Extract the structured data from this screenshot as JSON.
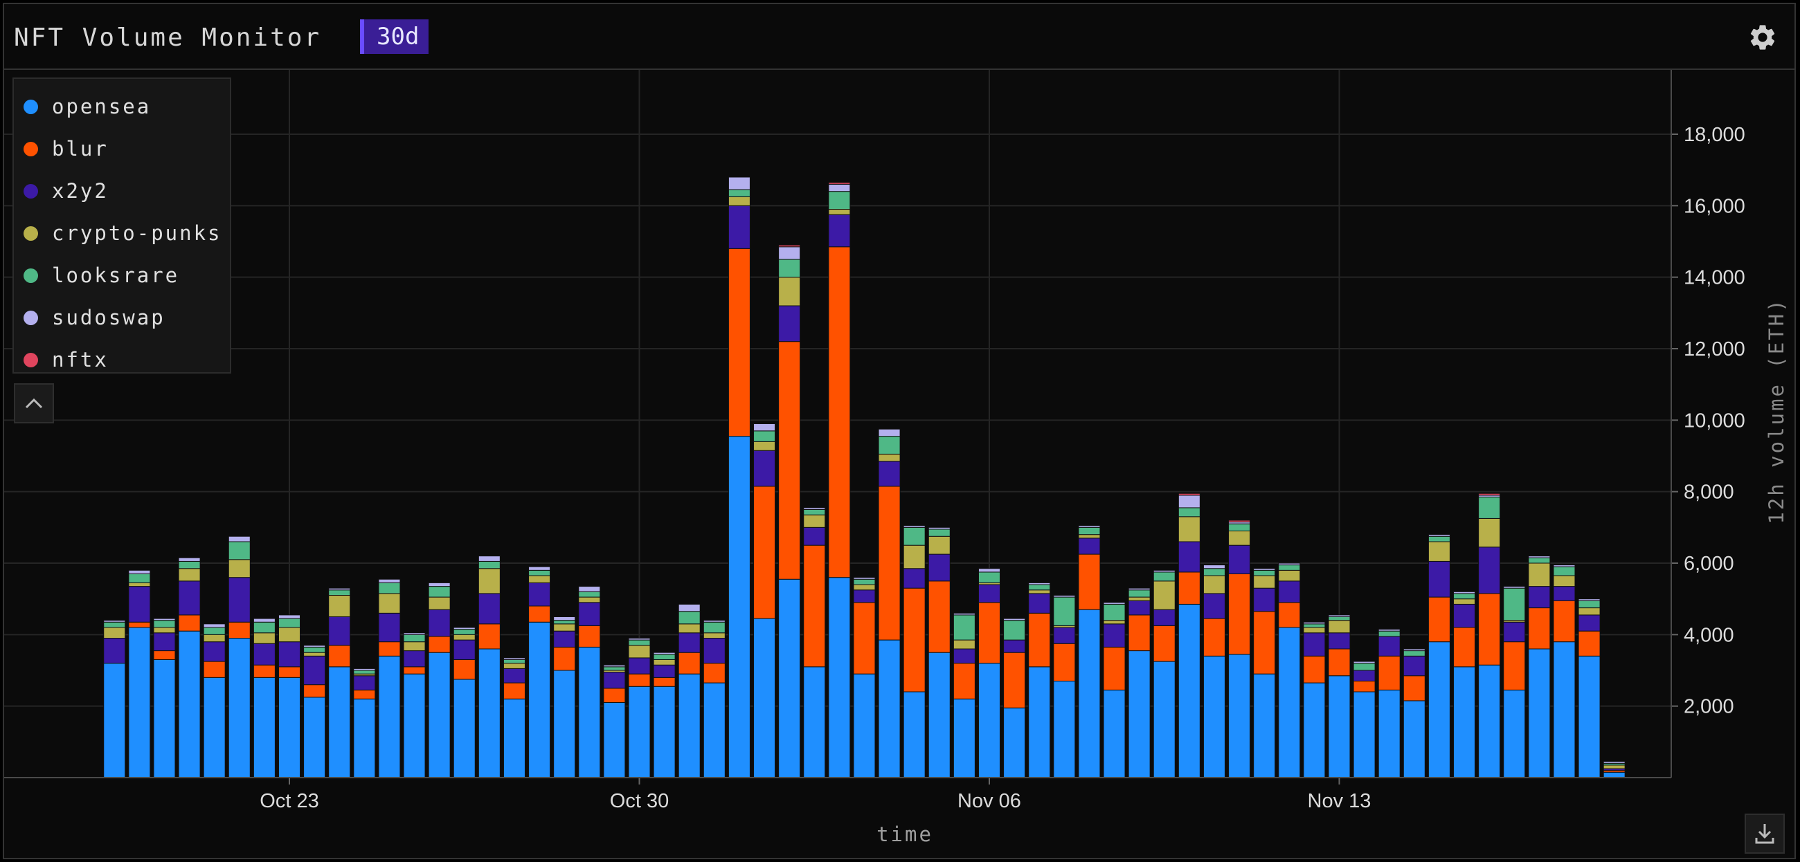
{
  "header": {
    "title": "NFT Volume Monitor",
    "range_label": "30d"
  },
  "icons": {
    "settings": "gear-icon",
    "collapse": "chevron-up-icon",
    "download": "download-icon"
  },
  "colors": {
    "opensea": "#1f8fff",
    "blur": "#ff5200",
    "x2y2": "#3c1aa6",
    "crypto-punks": "#b8b04a",
    "looksrare": "#4fb886",
    "sudoswap": "#b4b0ee",
    "nftx": "#e0455e",
    "accent": "#3a1e96"
  },
  "chart_data": {
    "type": "bar",
    "stacked": true,
    "title": "",
    "xlabel": "time",
    "ylabel": "12h volume (ETH)",
    "ylim": [
      0,
      19800
    ],
    "yticks": [
      2000,
      4000,
      6000,
      8000,
      10000,
      12000,
      14000,
      16000,
      18000
    ],
    "ytick_labels": [
      "2,000",
      "4,000",
      "6,000",
      "8,000",
      "10,000",
      "12,000",
      "14,000",
      "16,000",
      "18,000"
    ],
    "xtick_labels": [
      "Oct 23",
      "Oct 30",
      "Nov 06",
      "Nov 13"
    ],
    "x_start": "2023-10-19T12:00",
    "x_step_hours": 12,
    "grid": true,
    "legend_position": "top-left",
    "series": [
      {
        "name": "opensea",
        "values": [
          3200,
          4200,
          3300,
          4100,
          2800,
          3900,
          2800,
          2800,
          2250,
          3100,
          2200,
          3400,
          2900,
          3500,
          2750,
          3600,
          2200,
          4350,
          3000,
          3650,
          2100,
          2550,
          2550,
          2900,
          2650,
          9550,
          4450,
          5550,
          3100,
          5600,
          2900,
          3850,
          2400,
          3500,
          2200,
          3200,
          1950,
          3100,
          2700,
          4700,
          2450,
          3550,
          3250,
          4850,
          3400,
          3450,
          2900,
          4200,
          2650,
          2850,
          2400,
          2450,
          2150,
          3800,
          3100,
          3150,
          2450,
          3600,
          3800,
          3400,
          150
        ]
      },
      {
        "name": "blur",
        "values": [
          0,
          150,
          250,
          450,
          450,
          450,
          350,
          300,
          350,
          600,
          250,
          400,
          200,
          450,
          550,
          700,
          450,
          450,
          650,
          600,
          400,
          350,
          250,
          600,
          550,
          5250,
          3700,
          6650,
          3400,
          9250,
          2000,
          4300,
          2900,
          2000,
          1000,
          1700,
          1550,
          1500,
          1050,
          1550,
          1200,
          1000,
          1000,
          900,
          1050,
          2250,
          1750,
          700,
          750,
          750,
          300,
          950,
          700,
          1250,
          1100,
          2000,
          1350,
          1150,
          1150,
          700,
          50
        ]
      },
      {
        "name": "x2y2",
        "values": [
          700,
          1000,
          500,
          950,
          550,
          1250,
          600,
          700,
          800,
          800,
          400,
          800,
          450,
          750,
          550,
          850,
          400,
          650,
          450,
          650,
          450,
          450,
          350,
          550,
          700,
          1200,
          1000,
          1000,
          500,
          900,
          350,
          700,
          550,
          750,
          400,
          500,
          350,
          550,
          450,
          450,
          650,
          400,
          450,
          850,
          700,
          800,
          650,
          600,
          650,
          450,
          300,
          550,
          550,
          1000,
          650,
          1300,
          550,
          600,
          400,
          450,
          50
        ]
      },
      {
        "name": "crypto-punks",
        "values": [
          300,
          100,
          150,
          350,
          200,
          500,
          300,
          400,
          100,
          600,
          50,
          550,
          250,
          350,
          150,
          700,
          150,
          200,
          200,
          150,
          50,
          350,
          150,
          250,
          150,
          250,
          250,
          800,
          350,
          150,
          150,
          200,
          650,
          500,
          250,
          50,
          0,
          100,
          50,
          100,
          100,
          100,
          800,
          700,
          500,
          400,
          350,
          300,
          150,
          350,
          0,
          0,
          0,
          550,
          150,
          800,
          50,
          650,
          300,
          200,
          100
        ]
      },
      {
        "name": "looksrare",
        "values": [
          150,
          250,
          200,
          200,
          200,
          500,
          300,
          250,
          150,
          150,
          100,
          300,
          200,
          300,
          150,
          200,
          100,
          150,
          100,
          150,
          100,
          150,
          150,
          350,
          300,
          200,
          300,
          500,
          150,
          500,
          150,
          500,
          500,
          200,
          700,
          300,
          550,
          150,
          800,
          200,
          450,
          200,
          250,
          250,
          200,
          200,
          150,
          150,
          100,
          100,
          200,
          150,
          150,
          150,
          150,
          600,
          900,
          150,
          250,
          200,
          50
        ]
      },
      {
        "name": "sudoswap",
        "values": [
          50,
          100,
          50,
          100,
          100,
          150,
          100,
          100,
          50,
          50,
          50,
          100,
          50,
          100,
          50,
          150,
          50,
          100,
          100,
          150,
          50,
          50,
          50,
          200,
          50,
          350,
          200,
          350,
          50,
          200,
          50,
          200,
          50,
          50,
          50,
          100,
          50,
          50,
          50,
          50,
          50,
          50,
          50,
          350,
          100,
          50,
          50,
          50,
          50,
          50,
          50,
          50,
          50,
          50,
          50,
          50,
          50,
          50,
          50,
          50,
          50
        ]
      },
      {
        "name": "nftx",
        "values": [
          0,
          0,
          0,
          0,
          0,
          0,
          0,
          0,
          0,
          0,
          0,
          0,
          0,
          0,
          0,
          0,
          0,
          0,
          0,
          0,
          0,
          0,
          0,
          0,
          0,
          0,
          0,
          50,
          0,
          50,
          0,
          0,
          0,
          0,
          0,
          0,
          0,
          0,
          0,
          0,
          0,
          0,
          0,
          50,
          0,
          50,
          0,
          0,
          0,
          0,
          0,
          0,
          0,
          0,
          0,
          50,
          0,
          0,
          0,
          0,
          0
        ]
      }
    ]
  }
}
